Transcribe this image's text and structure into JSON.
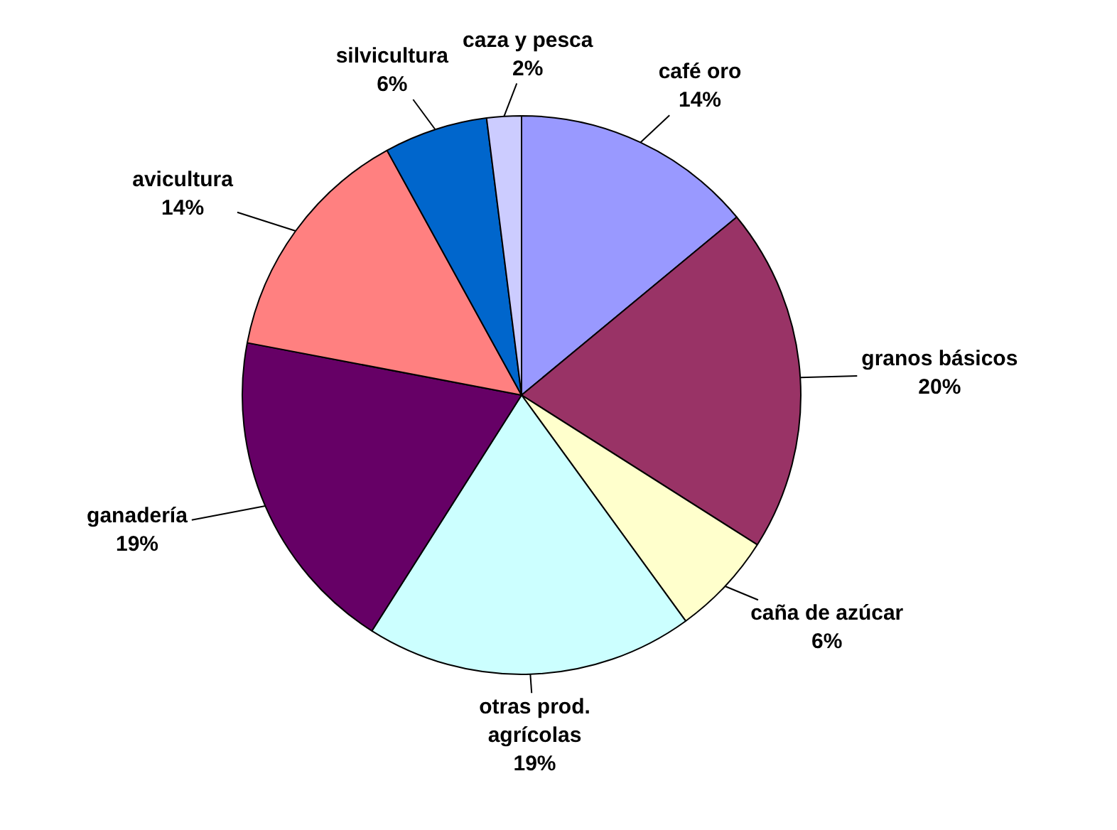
{
  "chart_data": {
    "type": "pie",
    "categories": [
      "café oro",
      "granos básicos",
      "caña de azúcar",
      "otras prod. agrícolas",
      "ganadería",
      "avicultura",
      "silvicultura",
      "caza y pesca"
    ],
    "values": [
      14,
      20,
      6,
      19,
      19,
      14,
      6,
      2
    ],
    "value_labels": [
      "14%",
      "20%",
      "6%",
      "19%",
      "19%",
      "14%",
      "6%",
      "2%"
    ],
    "colors": [
      "#9999ff",
      "#993366",
      "#ffffcc",
      "#ccffff",
      "#660066",
      "#ff8080",
      "#0066cc",
      "#ccccff"
    ],
    "legend": false
  }
}
